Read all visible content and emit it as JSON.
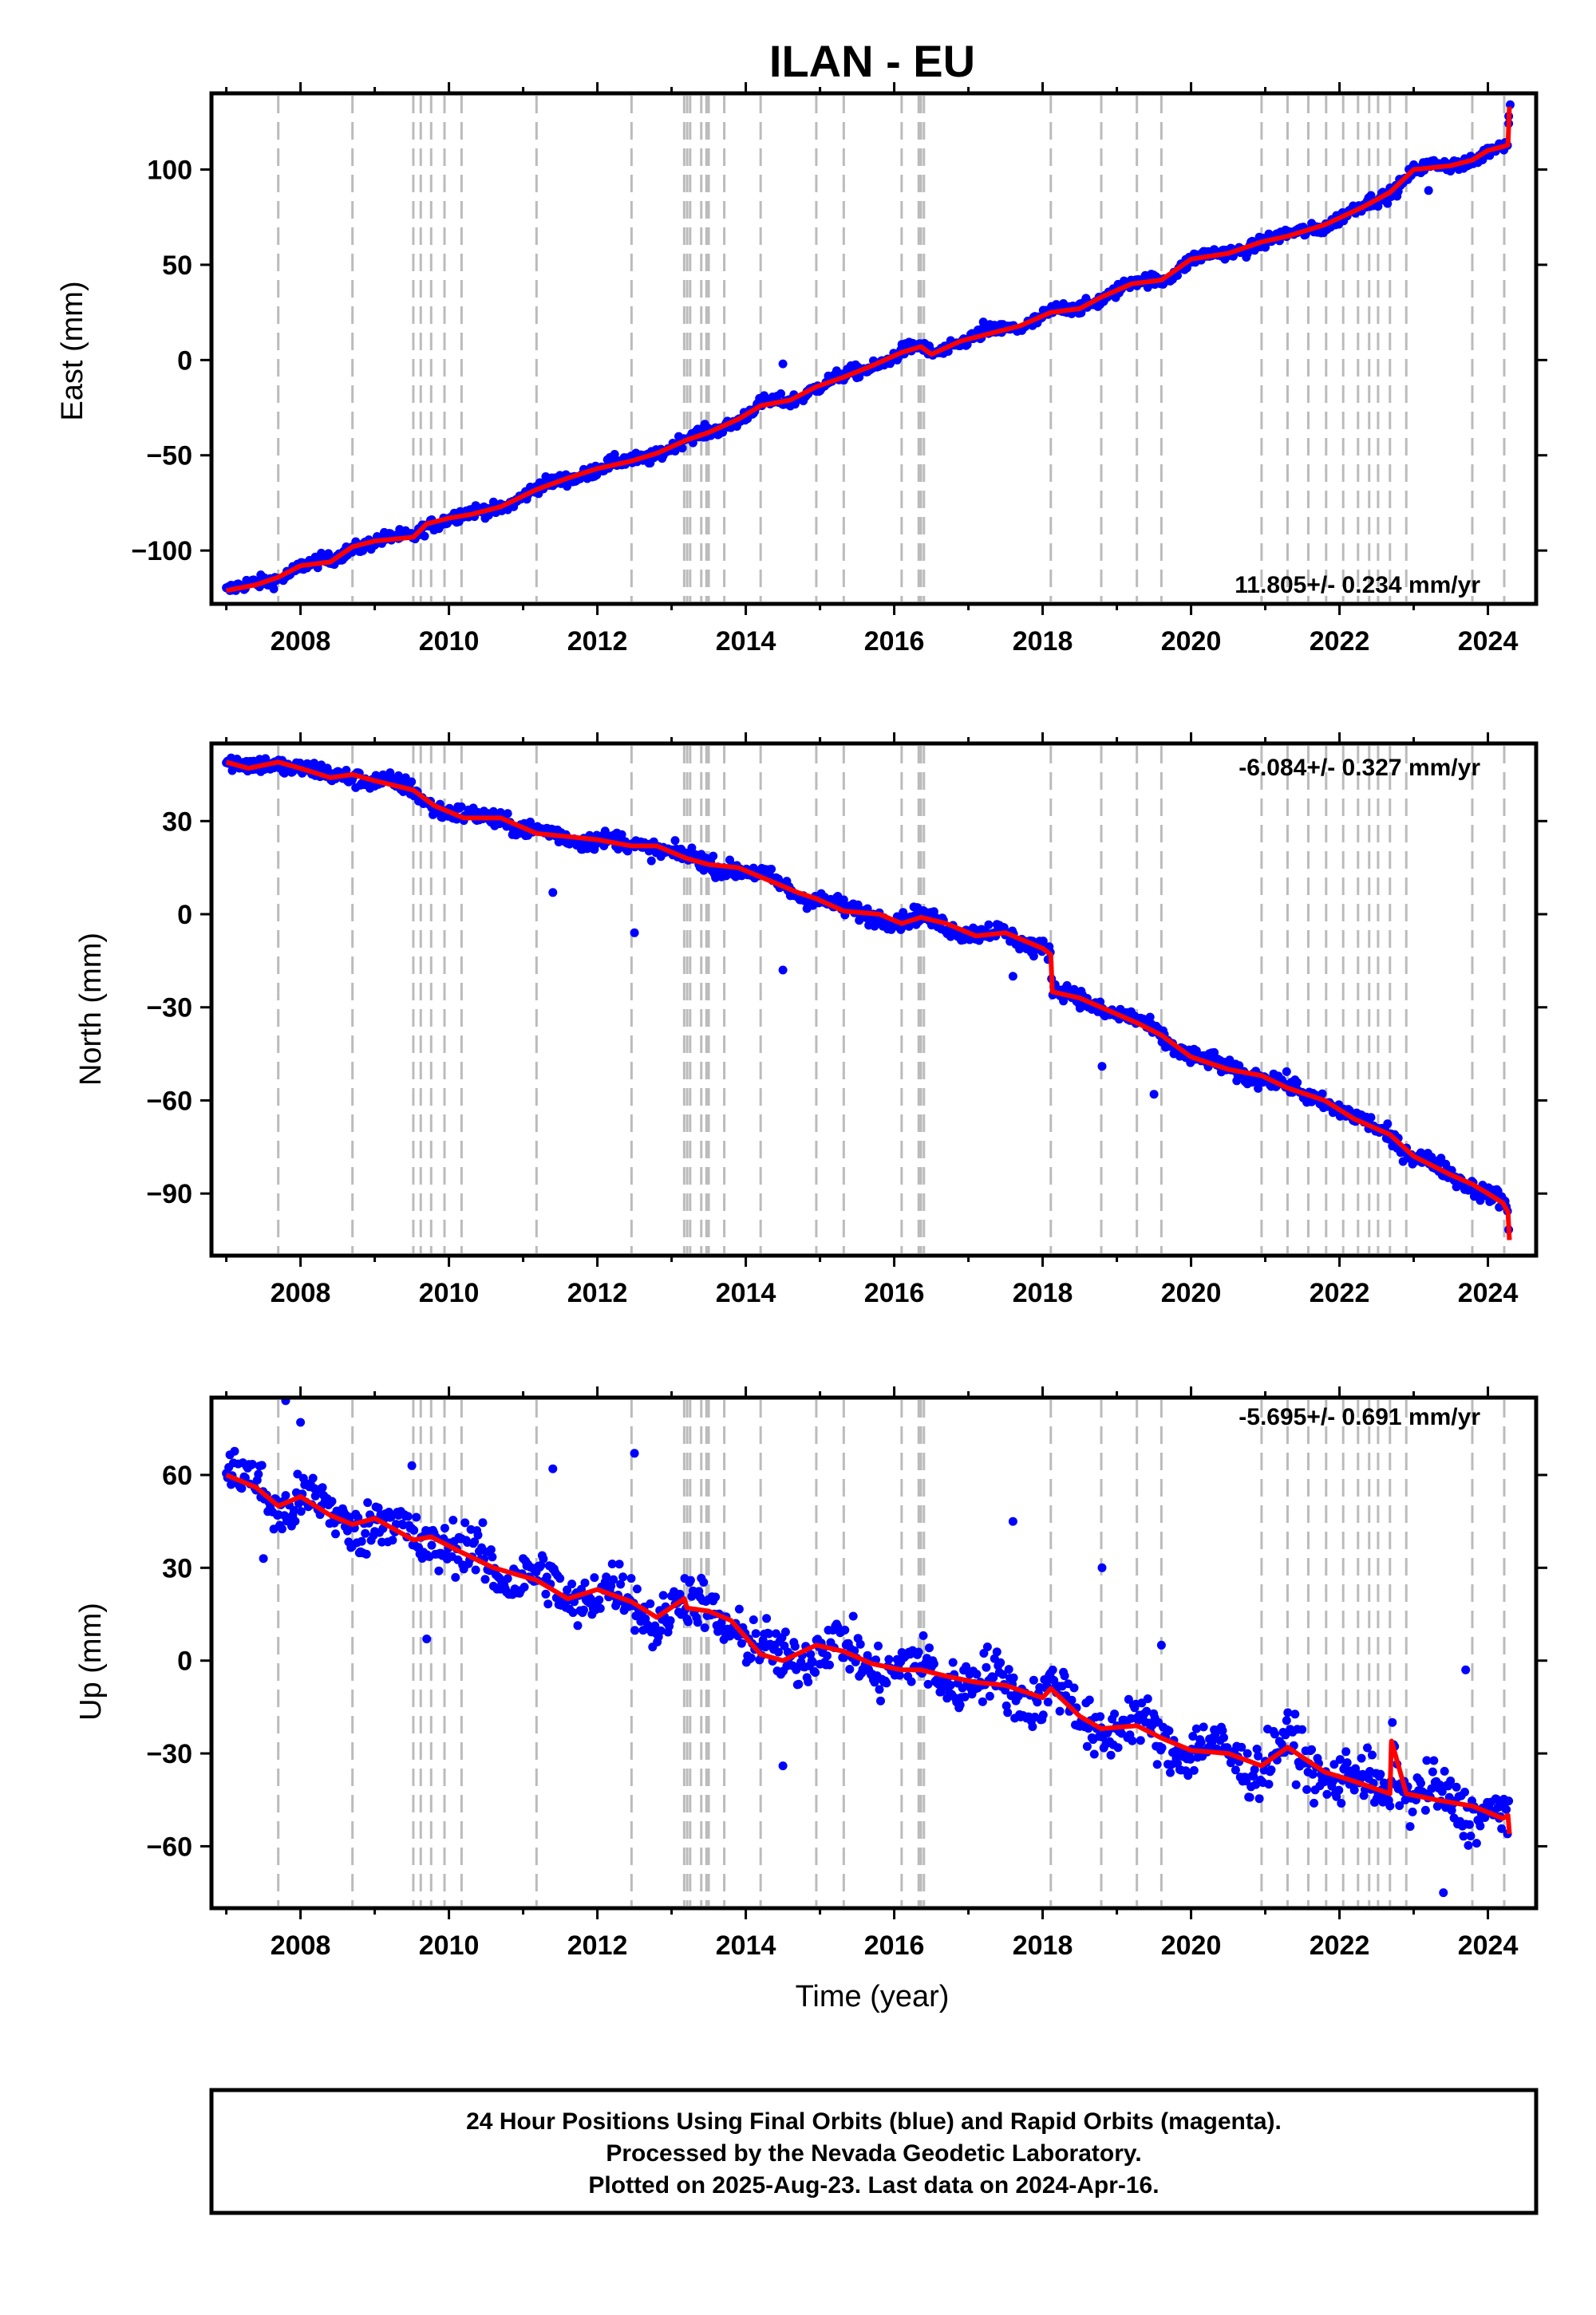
{
  "title": "ILAN - EU",
  "xlabel": "Time (year)",
  "footer": {
    "line1": "24 Hour Positions Using Final Orbits (blue) and Rapid Orbits (magenta).",
    "line2": "Processed by the Nevada Geodetic Laboratory.",
    "line3": "Plotted on 2025-Aug-23. Last data on 2024-Apr-16."
  },
  "colors": {
    "points": "#0000ff",
    "trend": "#ff0000",
    "events": "#bbbbbb",
    "frame": "#000000"
  },
  "chart_data": [
    {
      "type": "scatter",
      "ylabel": "East (mm)",
      "rate": "11.805+/- 0.234 mm/yr",
      "rate_position": "bottom-right",
      "xlim": [
        2006.8,
        2024.65
      ],
      "ylim": [
        -128,
        140
      ],
      "xticks": [
        2008,
        2010,
        2012,
        2014,
        2016,
        2018,
        2020,
        2022,
        2024
      ],
      "yticks": [
        -100,
        -50,
        0,
        50,
        100
      ],
      "ytick_labels": [
        "−100",
        "−50",
        "0",
        "50",
        "100"
      ],
      "events": [
        2007.7,
        2008.7,
        2009.52,
        2009.62,
        2009.76,
        2009.94,
        2010.17,
        2011.18,
        2012.46,
        2013.17,
        2013.21,
        2013.25,
        2013.4,
        2013.47,
        2013.5,
        2013.71,
        2014.2,
        2014.95,
        2015.32,
        2016.1,
        2016.33,
        2016.36,
        2016.4,
        2018.11,
        2018.79,
        2019.27,
        2019.6,
        2020.95,
        2021.3,
        2021.58,
        2021.82,
        2022.05,
        2022.25,
        2022.4,
        2022.52,
        2022.68,
        2022.9,
        2023.79,
        2024.22
      ],
      "trend": {
        "x": [
          2007.0,
          2007.4,
          2007.7,
          2008.0,
          2008.4,
          2008.7,
          2009.0,
          2009.52,
          2009.7,
          2010.0,
          2010.3,
          2010.7,
          2011.18,
          2011.6,
          2012.0,
          2012.46,
          2012.8,
          2013.2,
          2013.5,
          2013.9,
          2014.2,
          2014.6,
          2014.95,
          2015.32,
          2015.7,
          2016.1,
          2016.36,
          2016.5,
          2016.9,
          2017.3,
          2017.7,
          2018.11,
          2018.5,
          2018.79,
          2019.2,
          2019.6,
          2020.0,
          2020.5,
          2020.95,
          2021.3,
          2021.8,
          2022.3,
          2022.68,
          2023.0,
          2023.5,
          2023.79,
          2024.0,
          2024.2,
          2024.27,
          2024.29
        ],
        "y": [
          -121,
          -118,
          -114,
          -108,
          -106,
          -98,
          -95,
          -93,
          -86,
          -83,
          -81,
          -77,
          -68,
          -62,
          -57,
          -53,
          -49,
          -42,
          -38,
          -31,
          -24,
          -21,
          -14,
          -9,
          -3,
          4,
          7,
          3,
          10,
          14,
          18,
          25,
          27,
          33,
          40,
          42,
          53,
          56,
          62,
          65,
          71,
          80,
          88,
          100,
          102,
          105,
          110,
          112,
          113,
          133
        ]
      },
      "outliers": {
        "x": [
          2014.5,
          2017.2,
          2023.2,
          2024.28,
          2024.3
        ],
        "y": [
          -2,
          20,
          89,
          128,
          134
        ]
      },
      "scatter_spread": 2.4
    },
    {
      "type": "scatter",
      "ylabel": "North (mm)",
      "rate": "-6.084+/- 0.327 mm/yr",
      "rate_position": "top-right",
      "xlim": [
        2006.8,
        2024.65
      ],
      "ylim": [
        -110,
        55
      ],
      "xticks": [
        2008,
        2010,
        2012,
        2014,
        2016,
        2018,
        2020,
        2022,
        2024
      ],
      "yticks": [
        -90,
        -60,
        -30,
        0,
        30
      ],
      "ytick_labels": [
        "−90",
        "−60",
        "−30",
        "0",
        "30"
      ],
      "events": [
        2007.7,
        2008.7,
        2009.52,
        2009.62,
        2009.76,
        2009.94,
        2010.17,
        2011.18,
        2012.46,
        2013.17,
        2013.21,
        2013.25,
        2013.4,
        2013.47,
        2013.5,
        2013.71,
        2014.2,
        2014.95,
        2015.32,
        2016.1,
        2016.33,
        2016.36,
        2016.4,
        2018.11,
        2018.79,
        2019.27,
        2019.6,
        2020.95,
        2021.3,
        2021.58,
        2021.82,
        2022.05,
        2022.25,
        2022.4,
        2022.52,
        2022.68,
        2022.9,
        2023.79,
        2024.22
      ],
      "trend": {
        "x": [
          2007.0,
          2007.3,
          2007.7,
          2008.0,
          2008.4,
          2008.7,
          2009.0,
          2009.52,
          2009.8,
          2010.2,
          2010.7,
          2011.18,
          2011.6,
          2012.0,
          2012.46,
          2012.8,
          2013.2,
          2013.5,
          2013.9,
          2014.3,
          2014.7,
          2014.95,
          2015.32,
          2015.8,
          2016.1,
          2016.36,
          2016.7,
          2017.1,
          2017.5,
          2018.0,
          2018.11,
          2018.13,
          2018.5,
          2018.79,
          2019.27,
          2019.6,
          2020.0,
          2020.5,
          2020.95,
          2021.3,
          2021.8,
          2022.2,
          2022.68,
          2023.0,
          2023.5,
          2023.79,
          2024.0,
          2024.2,
          2024.27,
          2024.29
        ],
        "y": [
          49,
          47,
          49,
          47,
          44,
          45,
          43,
          40,
          35,
          31,
          31,
          26,
          25,
          24,
          22,
          22,
          18,
          16,
          15,
          11,
          7,
          5,
          1,
          0,
          -3,
          -1,
          -3,
          -7,
          -6,
          -11,
          -13,
          -25,
          -27,
          -30,
          -35,
          -39,
          -46,
          -50,
          -52,
          -56,
          -60,
          -66,
          -71,
          -78,
          -84,
          -87,
          -90,
          -93,
          -96,
          -105
        ]
      },
      "outliers": {
        "x": [
          2011.4,
          2012.5,
          2014.5,
          2017.6,
          2018.8,
          2019.5
        ],
        "y": [
          7,
          -6,
          -18,
          -20,
          -49,
          -58
        ]
      },
      "scatter_spread": 2.0
    },
    {
      "type": "scatter",
      "ylabel": "Up (mm)",
      "rate": "-5.695+/- 0.691 mm/yr",
      "rate_position": "top-right",
      "xlim": [
        2006.8,
        2024.65
      ],
      "ylim": [
        -80,
        85
      ],
      "xticks": [
        2008,
        2010,
        2012,
        2014,
        2016,
        2018,
        2020,
        2022,
        2024
      ],
      "yticks": [
        -60,
        -30,
        0,
        30,
        60
      ],
      "ytick_labels": [
        "−60",
        "−30",
        "0",
        "30",
        "60"
      ],
      "events": [
        2007.7,
        2008.7,
        2009.52,
        2009.62,
        2009.76,
        2009.94,
        2010.17,
        2011.18,
        2012.46,
        2013.17,
        2013.21,
        2013.25,
        2013.4,
        2013.47,
        2013.5,
        2013.71,
        2014.2,
        2014.95,
        2015.32,
        2016.1,
        2016.33,
        2016.36,
        2016.4,
        2018.11,
        2018.79,
        2019.27,
        2019.6,
        2020.95,
        2021.3,
        2021.58,
        2021.82,
        2022.05,
        2022.25,
        2022.4,
        2022.52,
        2022.68,
        2022.9,
        2023.79,
        2024.22
      ],
      "trend": {
        "x": [
          2007.0,
          2007.4,
          2007.7,
          2008.0,
          2008.4,
          2008.7,
          2009.0,
          2009.52,
          2009.76,
          2010.17,
          2010.6,
          2011.18,
          2011.6,
          2012.0,
          2012.46,
          2012.8,
          2013.17,
          2013.21,
          2013.5,
          2013.8,
          2014.2,
          2014.5,
          2014.95,
          2015.32,
          2015.7,
          2016.1,
          2016.36,
          2016.7,
          2017.1,
          2017.5,
          2018.0,
          2018.11,
          2018.5,
          2018.79,
          2019.27,
          2019.6,
          2020.0,
          2020.5,
          2020.95,
          2021.3,
          2021.8,
          2022.2,
          2022.68,
          2022.7,
          2022.9,
          2023.3,
          2023.79,
          2024.0,
          2024.2,
          2024.27,
          2024.29
        ],
        "y": [
          60,
          56,
          50,
          53,
          47,
          44,
          46,
          39,
          40,
          35,
          30,
          26,
          20,
          23,
          19,
          14,
          20,
          17,
          16,
          13,
          2,
          0,
          5,
          3,
          -1,
          -3,
          -3,
          -5,
          -7,
          -8,
          -12,
          -9,
          -18,
          -22,
          -21,
          -25,
          -29,
          -30,
          -34,
          -28,
          -36,
          -39,
          -43,
          -26,
          -43,
          -45,
          -47,
          -49,
          -51,
          -50,
          -56
        ]
      },
      "outliers": {
        "x": [
          2007.5,
          2007.8,
          2008.0,
          2009.5,
          2009.7,
          2011.4,
          2012.5,
          2014.5,
          2017.6,
          2018.8,
          2019.6,
          2023.4,
          2023.7
        ],
        "y": [
          33,
          84,
          77,
          63,
          7,
          62,
          67,
          -34,
          45,
          30,
          5,
          -75,
          -3
        ]
      },
      "scatter_spread": 6.0
    }
  ]
}
